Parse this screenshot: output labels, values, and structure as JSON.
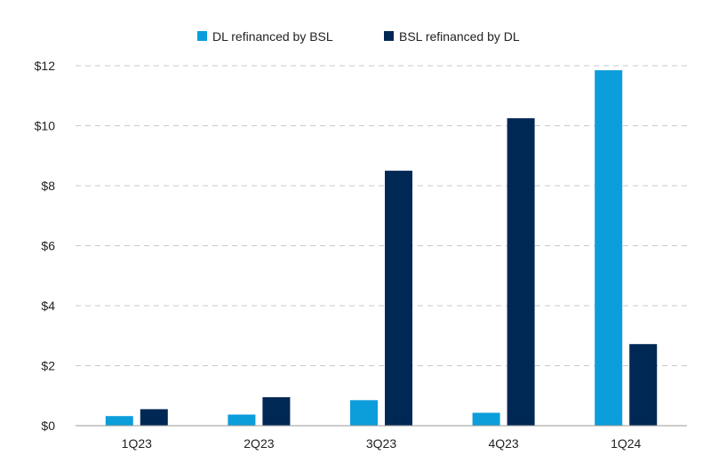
{
  "chart_data": {
    "type": "bar",
    "title": "",
    "xlabel": "",
    "ylabel": "",
    "categories": [
      "1Q23",
      "2Q23",
      "3Q23",
      "4Q23",
      "1Q24"
    ],
    "series": [
      {
        "name": "DL refinanced by BSL",
        "color": "#0c9ddb",
        "values": [
          0.32,
          0.37,
          0.85,
          0.43,
          11.85
        ]
      },
      {
        "name": "BSL refinanced by DL",
        "color": "#002855",
        "values": [
          0.55,
          0.95,
          8.5,
          10.25,
          2.72
        ]
      }
    ],
    "ylim": [
      0,
      12
    ],
    "yticks": [
      0,
      2,
      4,
      6,
      8,
      10,
      12
    ],
    "ytick_labels": [
      "$0",
      "$2",
      "$4",
      "$6",
      "$8",
      "$10",
      "$12"
    ],
    "grid": "horizontal dashed",
    "legend_position": "top-center"
  }
}
